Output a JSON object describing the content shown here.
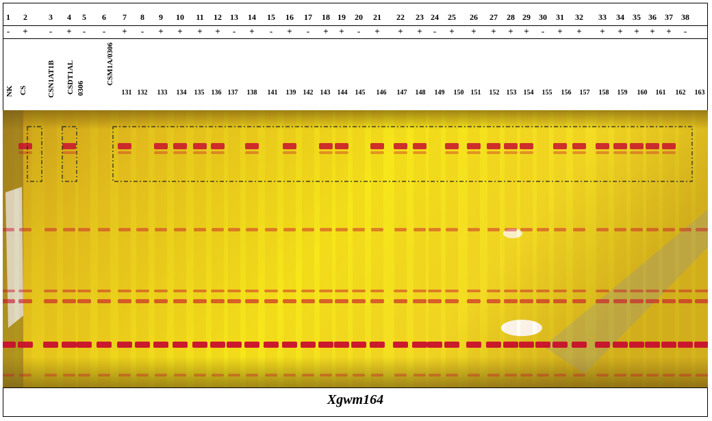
{
  "lane_numbers": [
    "1",
    "2",
    "3",
    "4",
    "5",
    "6",
    "7",
    "8",
    "9",
    "10",
    "11",
    "12",
    "13",
    "14",
    "15",
    "16",
    "17",
    "18",
    "19",
    "20",
    "21",
    "22",
    "23",
    "24",
    "25",
    "26",
    "27",
    "28",
    "29",
    "30",
    "31",
    "32",
    "33",
    "34",
    "35",
    "36",
    "37",
    "38"
  ],
  "signs": [
    "-",
    "+",
    "-",
    "+",
    "-",
    "-",
    "+",
    "-",
    "+",
    "+",
    "+",
    "+",
    "-",
    "+",
    "-",
    "+",
    "-",
    "+",
    "+",
    "-",
    "+",
    "+",
    "+",
    "-",
    "+",
    "+",
    "+",
    "+",
    "+",
    "-",
    "+",
    "+",
    "+",
    "+",
    "+",
    "+",
    "+",
    "-"
  ],
  "vertical_labels": [
    "NK",
    "CS",
    "CSN1AT1B",
    "CSDT1AL",
    "0306",
    "CSM1A/0306"
  ],
  "sample_labels": [
    "131",
    "132",
    "133",
    "134",
    "135",
    "136",
    "137",
    "138",
    "141",
    "139",
    "142",
    "143",
    "144",
    "145",
    "146",
    "147",
    "148",
    "149",
    "150",
    "151",
    "152",
    "153",
    "154",
    "155",
    "156",
    "157",
    "158",
    "159",
    "160",
    "161",
    "162",
    "163"
  ],
  "caption": "Xgwm164",
  "colors": {
    "gel_yellow": "#f4e21a",
    "band_red": "#c8102e",
    "border": "#000000"
  }
}
